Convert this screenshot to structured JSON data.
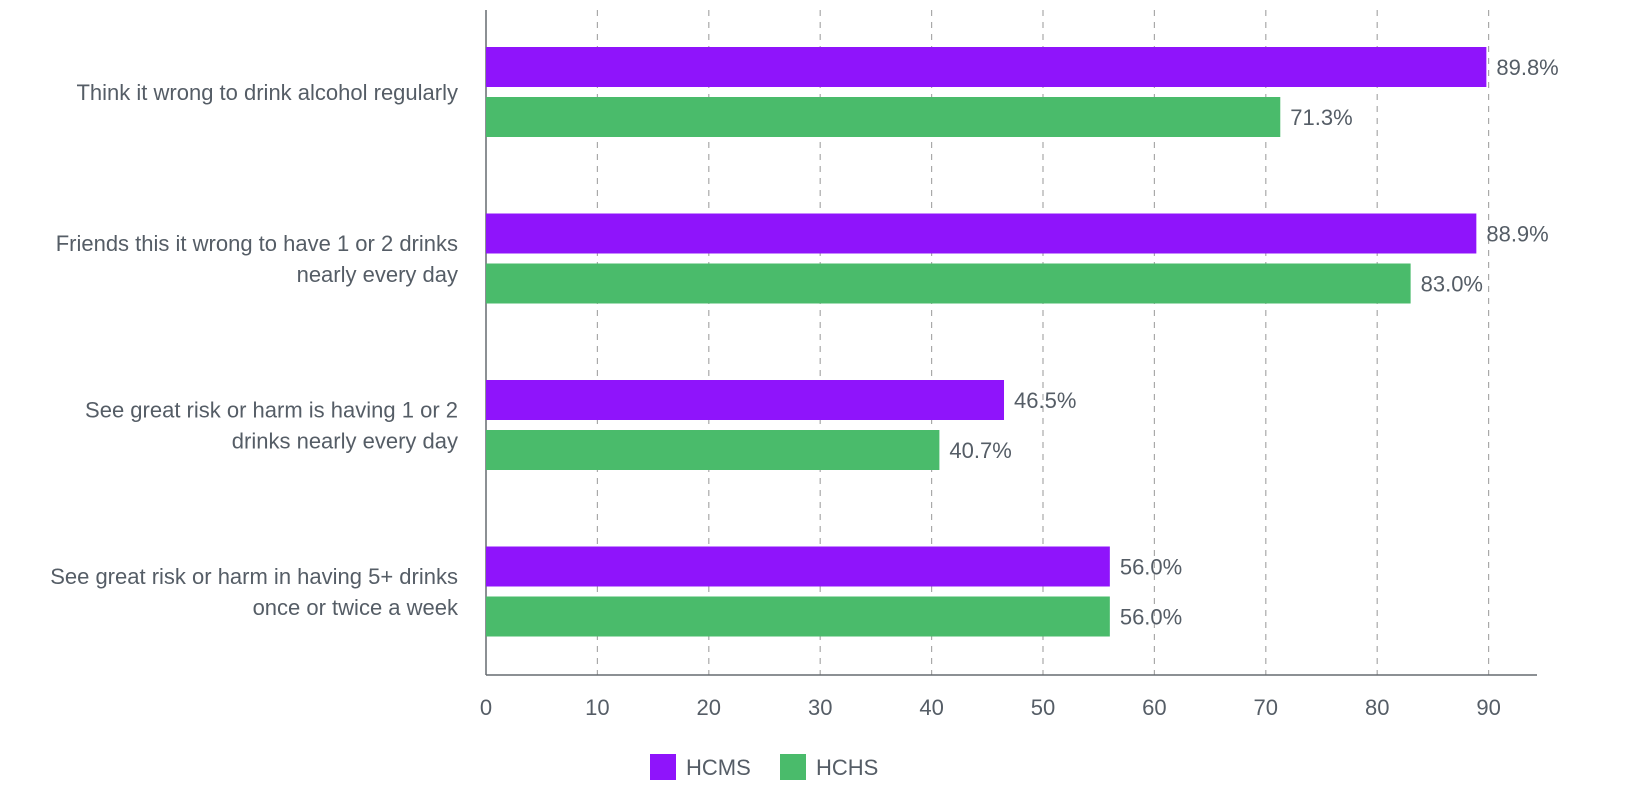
{
  "chart_data": {
    "type": "bar",
    "orientation": "horizontal",
    "title": "",
    "xlabel": "",
    "ylabel": "",
    "xlim": [
      0,
      94
    ],
    "x_ticks": [
      0,
      10,
      20,
      30,
      40,
      50,
      60,
      70,
      80,
      90
    ],
    "grid": "vertical-dashed",
    "legend_position": "bottom",
    "categories": [
      [
        "Think it wrong to drink alcohol regularly"
      ],
      [
        "Friends this it wrong to have 1 or 2 drinks",
        "nearly every day"
      ],
      [
        "See great risk or harm is having 1 or 2",
        "drinks nearly every day"
      ],
      [
        "See great risk or harm in having 5+ drinks",
        "once or twice a week"
      ]
    ],
    "series": [
      {
        "name": "HCMS",
        "color": "#8f14fb",
        "values": [
          89.8,
          88.9,
          46.5,
          56.0
        ],
        "labels": [
          "89.8%",
          "88.9%",
          "46.5%",
          "56.0%"
        ]
      },
      {
        "name": "HCHS",
        "color": "#4abb6b",
        "values": [
          71.3,
          83.0,
          40.7,
          56.0
        ],
        "labels": [
          "71.3%",
          "83.0%",
          "40.7%",
          "56.0%"
        ]
      }
    ]
  }
}
